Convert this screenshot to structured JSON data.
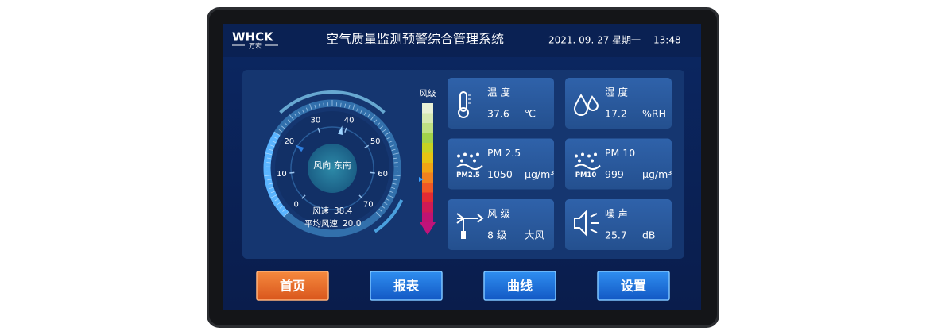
{
  "header": {
    "logo": "WHCK",
    "logo_sub": "万宏",
    "title": "空气质量监测预警综合管理系统",
    "date": "2021. 09. 27",
    "weekday": "星期一",
    "time": "13:48"
  },
  "wind_gauge": {
    "ticks": [
      0,
      10,
      20,
      30,
      40,
      50,
      60,
      70
    ],
    "direction": "风向 东南",
    "speed_label": "风速",
    "speed": 38.4,
    "avg_label": "平均风速",
    "avg_speed": {
      "value": 20,
      "label": "20.0"
    }
  },
  "wind_scale": {
    "label": "风级"
  },
  "cards": [
    {
      "label": "温 度",
      "value": "37.6",
      "unit": "℃"
    },
    {
      "label": "湿 度",
      "value": "17.2",
      "unit": "%RH"
    },
    {
      "icon_label": "PM2.5",
      "label": "PM 2.5",
      "value": "1050",
      "unit": "μg/m³"
    },
    {
      "icon_label": "PM10",
      "label": "PM 10",
      "value": "999",
      "unit": "μg/m³"
    },
    {
      "label": "风 级",
      "value": "8 级",
      "unit": "大风"
    },
    {
      "label": "噪 声",
      "value": "25.7",
      "unit": "dB"
    }
  ],
  "buttons": [
    "首页",
    "报表",
    "曲线",
    "设置"
  ]
}
